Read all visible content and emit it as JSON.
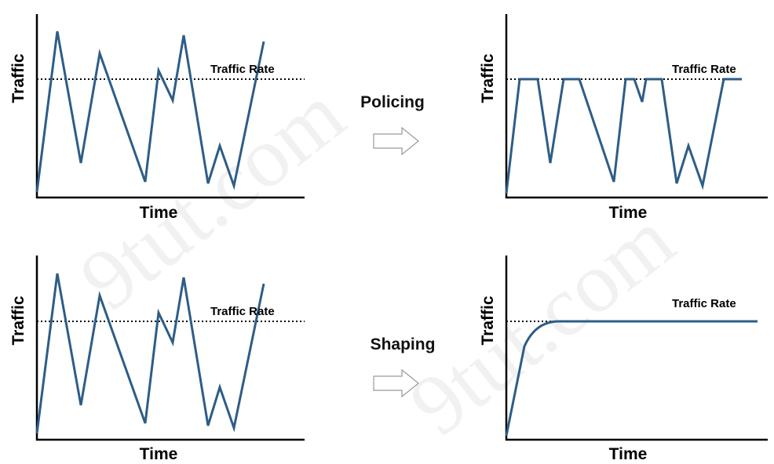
{
  "panels": [
    {
      "y_label": "Traffic",
      "x_label": "Time",
      "rate_label": "Traffic Rate"
    },
    {
      "y_label": "Traffic",
      "x_label": "Time",
      "rate_label": "Traffic Rate"
    },
    {
      "y_label": "Traffic",
      "x_label": "Time",
      "rate_label": "Traffic Rate"
    },
    {
      "y_label": "Traffic",
      "x_label": "Time",
      "rate_label": "Traffic Rate"
    }
  ],
  "transitions": [
    {
      "label": "Policing"
    },
    {
      "label": "Shaping"
    }
  ],
  "watermarks": [
    "9tut.com",
    "9tut.com"
  ]
}
